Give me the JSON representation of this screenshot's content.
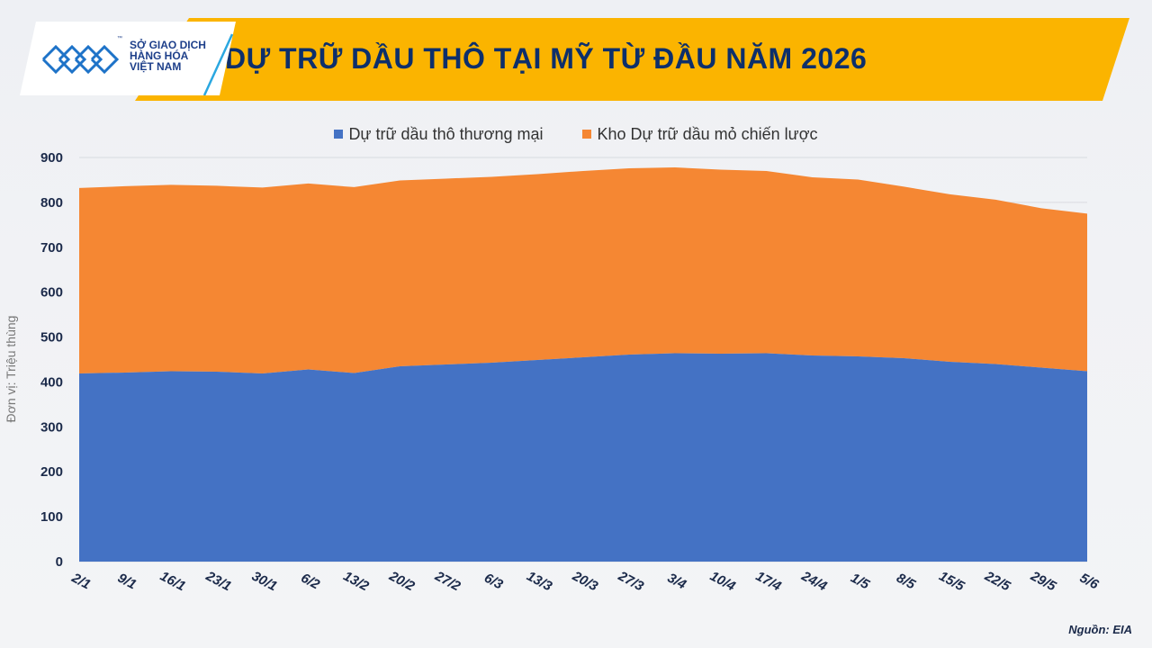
{
  "header": {
    "title": "DỰ TRỮ DẦU THÔ TẠI MỸ TỪ ĐẦU NĂM 2026",
    "logo": {
      "line1": "SỞ GIAO DỊCH",
      "line2": "HÀNG HÓA",
      "line3": "VIỆT NAM",
      "mark": "™"
    }
  },
  "source": "Nguồn: EIA",
  "colors": {
    "commercial": "#4472c4",
    "spr": "#f58733",
    "band": "#fbb400",
    "title": "#0d2f6b"
  },
  "chart_data": {
    "type": "area",
    "stacked": true,
    "title": "DỰ TRỮ DẦU THÔ TẠI MỸ TỪ ĐẦU NĂM 2026",
    "ylabel": "Đơn vị: Triệu thùng",
    "xlabel": "",
    "ylim": [
      0,
      900
    ],
    "yticks": [
      0,
      100,
      200,
      300,
      400,
      500,
      600,
      700,
      800,
      900
    ],
    "grid": true,
    "legend_position": "top-center",
    "categories": [
      "2/1",
      "9/1",
      "16/1",
      "23/1",
      "30/1",
      "6/2",
      "13/2",
      "20/2",
      "27/2",
      "6/3",
      "13/3",
      "20/3",
      "27/3",
      "3/4",
      "10/4",
      "17/4",
      "24/4",
      "1/5",
      "8/5",
      "15/5",
      "22/5",
      "29/5",
      "5/6"
    ],
    "series": [
      {
        "name": "Dự trữ dầu thô thương mại",
        "color": "#4472c4",
        "values": [
          419,
          421,
          424,
          423,
          419,
          428,
          420,
          435,
          439,
          443,
          449,
          455,
          461,
          464,
          463,
          464,
          459,
          457,
          453,
          445,
          440,
          432,
          424
        ]
      },
      {
        "name": "Kho Dự trữ dầu mỏ chiến lược",
        "color": "#f58733",
        "values": [
          413,
          415,
          415,
          414,
          414,
          414,
          414,
          414,
          414,
          414,
          414,
          415,
          415,
          414,
          410,
          406,
          397,
          394,
          382,
          373,
          366,
          355,
          351
        ]
      }
    ]
  }
}
